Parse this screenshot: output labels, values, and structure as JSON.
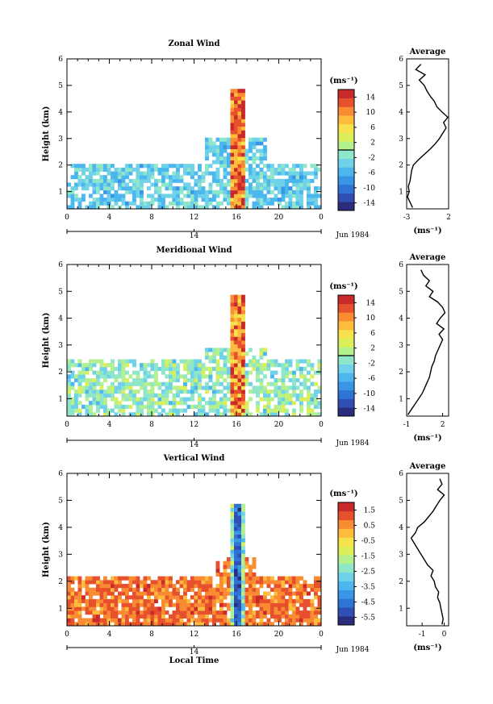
{
  "colors": {
    "scale": [
      "#2b2d7a",
      "#2f4fb5",
      "#2f73d4",
      "#3a95e6",
      "#4cb6ee",
      "#6fd2e8",
      "#8fe6c8",
      "#b4f08e",
      "#dcef5a",
      "#f6e24a",
      "#fcbc3c",
      "#f98c33",
      "#e7502c",
      "#c9292a"
    ],
    "line": "#000000",
    "vertical_core": "#2c3a8e"
  },
  "chart_data": [
    {
      "id": "zonal",
      "type": "heatmap",
      "title": "Zonal Wind",
      "ylabel": "Height (km)",
      "x_ticks": [
        "0",
        "4",
        "8",
        "12",
        "16",
        "20",
        "0"
      ],
      "y_ticks": [
        "1",
        "2",
        "3",
        "4",
        "5",
        "6"
      ],
      "xlim": [
        0,
        24
      ],
      "ylim": [
        0.35,
        6.0
      ],
      "date_marker": "14",
      "date_label": "Jun 1984",
      "colorbar_unit": "(ms⁻¹)",
      "colorbar_ticks": [
        "14",
        "10",
        "6",
        "2",
        "-2",
        "-6",
        "-10",
        "-14"
      ],
      "colorbar_range": [
        -16,
        16
      ],
      "average": {
        "title": "Average",
        "xlabel": "(ms⁻¹)",
        "x_ticks": [
          "-3",
          "2"
        ],
        "xlim": [
          -3,
          2
        ],
        "y_ticks": [
          "1",
          "2",
          "3",
          "4",
          "5",
          "6"
        ],
        "heights": [
          0.4,
          0.6,
          0.8,
          1.0,
          1.2,
          1.4,
          1.6,
          1.8,
          2.0,
          2.2,
          2.4,
          2.6,
          2.8,
          3.0,
          3.2,
          3.4,
          3.6,
          3.8,
          4.0,
          4.2,
          4.4,
          4.6,
          4.8,
          5.0,
          5.2,
          5.4,
          5.6,
          5.8
        ],
        "values": [
          -2.3,
          -2.6,
          -2.9,
          -2.7,
          -2.8,
          -2.6,
          -2.5,
          -2.4,
          -2.2,
          -1.6,
          -0.9,
          -0.2,
          0.4,
          0.9,
          1.3,
          1.7,
          1.4,
          1.9,
          1.2,
          0.6,
          0.3,
          -0.2,
          -0.6,
          -0.9,
          -1.5,
          -0.8,
          -1.9,
          -1.3
        ]
      }
    },
    {
      "id": "meridional",
      "type": "heatmap",
      "title": "Meridional Wind",
      "ylabel": "Height (km)",
      "x_ticks": [
        "0",
        "4",
        "8",
        "12",
        "16",
        "20",
        "0"
      ],
      "y_ticks": [
        "1",
        "2",
        "3",
        "4",
        "5",
        "6"
      ],
      "xlim": [
        0,
        24
      ],
      "ylim": [
        0.35,
        6.0
      ],
      "date_marker": "14",
      "date_label": "Jun 1984",
      "colorbar_unit": "(ms⁻¹)",
      "colorbar_ticks": [
        "14",
        "10",
        "6",
        "2",
        "-2",
        "-6",
        "-10",
        "-14"
      ],
      "colorbar_range": [
        -16,
        16
      ],
      "average": {
        "title": "Average",
        "xlabel": "(ms⁻¹)",
        "x_ticks": [
          "-1",
          "2"
        ],
        "xlim": [
          -1,
          2.5
        ],
        "y_ticks": [
          "1",
          "2",
          "3",
          "4",
          "5",
          "6"
        ],
        "heights": [
          0.4,
          0.6,
          0.8,
          1.0,
          1.2,
          1.4,
          1.6,
          1.8,
          2.0,
          2.2,
          2.4,
          2.6,
          2.8,
          3.0,
          3.2,
          3.4,
          3.6,
          3.8,
          4.0,
          4.2,
          4.4,
          4.6,
          4.8,
          5.0,
          5.2,
          5.4,
          5.6,
          5.8
        ],
        "values": [
          -0.9,
          -0.6,
          -0.3,
          0.0,
          0.3,
          0.5,
          0.7,
          0.9,
          1.0,
          1.1,
          1.3,
          1.4,
          1.6,
          1.8,
          2.0,
          1.7,
          2.1,
          1.5,
          1.8,
          2.2,
          2.0,
          1.6,
          0.9,
          1.2,
          0.6,
          0.9,
          0.4,
          0.2
        ]
      }
    },
    {
      "id": "vertical",
      "type": "heatmap",
      "title": "Vertical Wind",
      "ylabel": "Height (km)",
      "xlabel": "Local Time",
      "x_ticks": [
        "0",
        "4",
        "8",
        "12",
        "16",
        "20",
        "0"
      ],
      "y_ticks": [
        "1",
        "2",
        "3",
        "4",
        "5",
        "6"
      ],
      "xlim": [
        0,
        24
      ],
      "ylim": [
        0.35,
        6.0
      ],
      "date_marker": "14",
      "date_label": "Jun 1984",
      "colorbar_unit": "(ms⁻¹)",
      "colorbar_ticks": [
        "1.5",
        "0.5",
        "-0.5",
        "-1.5",
        "-2.5",
        "-3.5",
        "-4.5",
        "-5.5"
      ],
      "colorbar_range": [
        -6.0,
        2.0
      ],
      "average": {
        "title": "Average",
        "xlabel": "(ms⁻¹)",
        "x_ticks": [
          "-1",
          "0"
        ],
        "xlim": [
          -1.7,
          0.2
        ],
        "y_ticks": [
          "1",
          "2",
          "3",
          "4",
          "5",
          "6"
        ],
        "heights": [
          0.4,
          0.6,
          0.8,
          1.0,
          1.2,
          1.4,
          1.6,
          1.8,
          2.0,
          2.2,
          2.4,
          2.6,
          2.8,
          3.0,
          3.2,
          3.4,
          3.6,
          3.8,
          4.0,
          4.2,
          4.4,
          4.6,
          4.8,
          5.0,
          5.2,
          5.4,
          5.6,
          5.8
        ],
        "values": [
          -0.1,
          -0.05,
          -0.1,
          -0.15,
          -0.2,
          -0.3,
          -0.25,
          -0.4,
          -0.45,
          -0.6,
          -0.5,
          -0.75,
          -0.9,
          -1.05,
          -1.2,
          -1.35,
          -1.5,
          -1.3,
          -1.2,
          -0.9,
          -0.7,
          -0.5,
          -0.35,
          -0.2,
          0.0,
          -0.3,
          -0.1,
          -0.2
        ]
      }
    }
  ]
}
